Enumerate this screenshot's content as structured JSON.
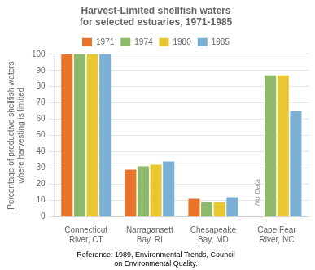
{
  "chart_data": {
    "type": "bar",
    "title": "Harvest-Limited shellfish waters\nfor selected estuaries, 1971-1985",
    "ylabel": "Percentage of productive shellfish waters\nwhere harvesting is limited",
    "caption": "Reference: 1989, Environmental Trends, Council\non Environmental Quality.",
    "categories": [
      "Connecticut\nRiver, CT",
      "Narragansett\nBay, RI",
      "Chesapeake\nBay, MD",
      "Cape Fear\nRiver, NC"
    ],
    "series": [
      {
        "name": "1971",
        "color": "#E8732A",
        "values": [
          100,
          29,
          11,
          0
        ]
      },
      {
        "name": "1974",
        "color": "#8DB96A",
        "values": [
          100,
          31,
          9,
          87
        ]
      },
      {
        "name": "1980",
        "color": "#E8C832",
        "values": [
          100,
          32,
          9,
          87
        ]
      },
      {
        "name": "1985",
        "color": "#7AB0D4",
        "values": [
          100,
          34,
          12,
          65
        ]
      }
    ],
    "ylim": [
      0,
      100
    ],
    "yticks": [
      0,
      10,
      20,
      30,
      40,
      50,
      60,
      70,
      80,
      90,
      100
    ],
    "grid": true,
    "legend": "top",
    "annotations": [
      {
        "text": "No Data",
        "category": "Cape Fear\nRiver, NC",
        "series": "1971"
      }
    ]
  }
}
